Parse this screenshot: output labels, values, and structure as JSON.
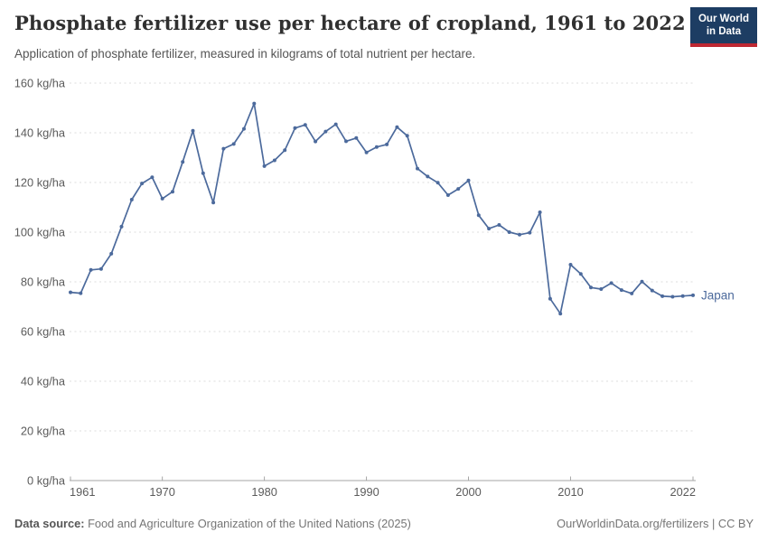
{
  "header": {
    "title": "Phosphate fertilizer use per hectare of cropland, 1961 to 2022",
    "subtitle": "Application of phosphate fertilizer, measured in kilograms of total nutrient per hectare.",
    "logo": {
      "line1": "Our World",
      "line2": "in Data"
    }
  },
  "footer": {
    "source_label": "Data source:",
    "source_text": " Food and Agriculture Organization of the United Nations (2025)",
    "credit": "OurWorldinData.org/fertilizers | CC BY"
  },
  "colors": {
    "line": "#4C6A9C",
    "grid": "#dcdcdc",
    "axis": "#a6a6a6",
    "tick_label": "#5b5b5b",
    "logo_bg": "#1d3d63",
    "logo_red": "#be2832"
  },
  "chart_data": {
    "type": "line",
    "title": "Phosphate fertilizer use per hectare of cropland, 1961 to 2022",
    "subtitle": "Application of phosphate fertilizer, measured in kilograms of total nutrient per hectare.",
    "xlabel": "",
    "ylabel": "kg/ha",
    "xlim": [
      1961,
      2022
    ],
    "ylim": [
      0,
      160
    ],
    "x_ticks": [
      1961,
      1970,
      1980,
      1990,
      2000,
      2010,
      2022
    ],
    "y_ticks": [
      0,
      20,
      40,
      60,
      80,
      100,
      120,
      140,
      160
    ],
    "y_tick_suffix": " kg/ha",
    "grid": "dashed-horizontal",
    "legend": "end-of-line-label",
    "series": [
      {
        "name": "Japan",
        "color": "#4C6A9C",
        "x": [
          1961,
          1962,
          1963,
          1964,
          1965,
          1966,
          1967,
          1968,
          1969,
          1970,
          1971,
          1972,
          1973,
          1974,
          1975,
          1976,
          1977,
          1978,
          1979,
          1980,
          1981,
          1982,
          1983,
          1984,
          1985,
          1986,
          1987,
          1988,
          1989,
          1990,
          1991,
          1992,
          1993,
          1994,
          1995,
          1996,
          1997,
          1998,
          1999,
          2000,
          2001,
          2002,
          2003,
          2004,
          2005,
          2006,
          2007,
          2008,
          2009,
          2010,
          2011,
          2012,
          2013,
          2014,
          2015,
          2016,
          2017,
          2018,
          2019,
          2020,
          2021,
          2022
        ],
        "values": [
          75.8,
          75.4,
          84.8,
          85.2,
          91.3,
          102.2,
          113.1,
          119.6,
          122.1,
          113.5,
          116.3,
          128.3,
          140.8,
          123.7,
          111.9,
          133.6,
          135.5,
          141.6,
          151.8,
          126.6,
          128.9,
          133.0,
          141.9,
          143.2,
          136.5,
          140.5,
          143.4,
          136.6,
          137.9,
          132.1,
          134.3,
          135.3,
          142.3,
          138.8,
          125.6,
          122.4,
          119.9,
          114.9,
          117.4,
          120.8,
          106.8,
          101.4,
          102.9,
          100.0,
          99.0,
          99.8,
          108.0,
          73.2,
          67.2,
          86.9,
          83.2,
          77.7,
          77.1,
          79.5,
          76.7,
          75.3,
          80.1,
          76.5,
          74.2,
          74.0,
          74.3,
          74.6
        ]
      }
    ]
  }
}
